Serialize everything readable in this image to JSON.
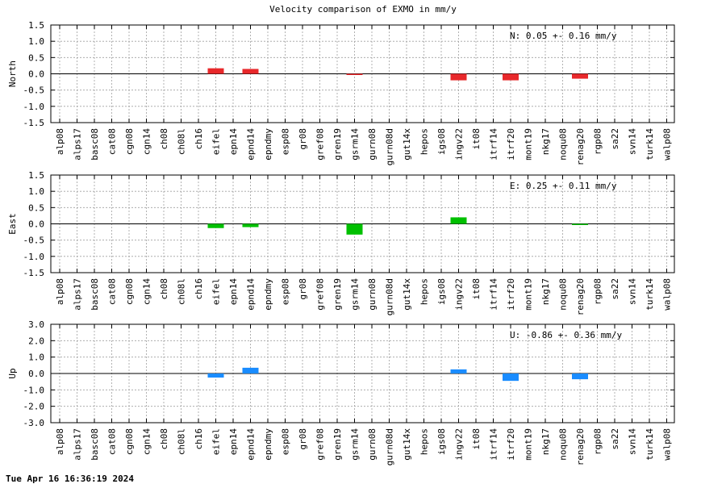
{
  "title": "Velocity comparison of EXMO in mm/y",
  "timestamp": "Tue Apr 16 16:36:19 2024",
  "chart_data": [
    {
      "type": "bar",
      "ylabel": "North",
      "ylim": [
        -1.5,
        1.5
      ],
      "yticks": [
        "1.5",
        "1.0",
        "0.5",
        "0.0",
        "-0.5",
        "-1.0",
        "-1.5"
      ],
      "ytick_values": [
        1.5,
        1.0,
        0.5,
        0.0,
        -0.5,
        -1.0,
        -1.5
      ],
      "color": "#e8282b",
      "stat": "N:   0.05 +-  0.16 mm/y",
      "categories": [
        "alp08",
        "alps17",
        "basc08",
        "cat08",
        "cgn08",
        "cgn14",
        "ch08",
        "ch08l",
        "ch16",
        "eifel",
        "epn14",
        "epnd14",
        "epndmy",
        "esp08",
        "gr08",
        "gref08",
        "gren19",
        "gsrm14",
        "gurn08",
        "gurn08d",
        "gut14x",
        "hepos",
        "igs08",
        "ingv22",
        "it08",
        "itrf14",
        "itrf20",
        "mont19",
        "nkg17",
        "noqu08",
        "renag20",
        "rgp08",
        "sa22",
        "svn14",
        "turk14",
        "walp08"
      ],
      "values": [
        null,
        null,
        null,
        null,
        null,
        null,
        null,
        null,
        null,
        0.17,
        null,
        0.15,
        null,
        null,
        null,
        null,
        null,
        -0.03,
        null,
        null,
        null,
        null,
        null,
        -0.2,
        null,
        null,
        -0.2,
        null,
        null,
        null,
        -0.15,
        null,
        null,
        null,
        null,
        null
      ],
      "grid": true
    },
    {
      "type": "bar",
      "ylabel": "East",
      "ylim": [
        -1.5,
        1.5
      ],
      "yticks": [
        "1.5",
        "1.0",
        "0.5",
        "0.0",
        "-0.5",
        "-1.0",
        "-1.5"
      ],
      "ytick_values": [
        1.5,
        1.0,
        0.5,
        0.0,
        -0.5,
        -1.0,
        -1.5
      ],
      "color": "#00c000",
      "stat": "E:   0.25 +-  0.11 mm/y",
      "categories": [
        "alp08",
        "alps17",
        "basc08",
        "cat08",
        "cgn08",
        "cgn14",
        "ch08",
        "ch08l",
        "ch16",
        "eifel",
        "epn14",
        "epnd14",
        "epndmy",
        "esp08",
        "gr08",
        "gref08",
        "gren19",
        "gsrm14",
        "gurn08",
        "gurn08d",
        "gut14x",
        "hepos",
        "igs08",
        "ingv22",
        "it08",
        "itrf14",
        "itrf20",
        "mont19",
        "nkg17",
        "noqu08",
        "renag20",
        "rgp08",
        "sa22",
        "svn14",
        "turk14",
        "walp08"
      ],
      "values": [
        null,
        null,
        null,
        null,
        null,
        null,
        null,
        null,
        null,
        -0.13,
        null,
        -0.1,
        null,
        null,
        null,
        null,
        null,
        -0.33,
        null,
        null,
        null,
        null,
        null,
        0.2,
        null,
        null,
        null,
        null,
        null,
        null,
        -0.03,
        null,
        null,
        null,
        null,
        null
      ],
      "grid": true
    },
    {
      "type": "bar",
      "ylabel": "Up",
      "ylim": [
        -3.0,
        3.0
      ],
      "yticks": [
        "3.0",
        "2.0",
        "1.0",
        "0.0",
        "-1.0",
        "-2.0",
        "-3.0"
      ],
      "ytick_values": [
        3.0,
        2.0,
        1.0,
        0.0,
        -1.0,
        -2.0,
        -3.0
      ],
      "color": "#1a8cff",
      "stat": "U:  -0.86 +-  0.36 mm/y",
      "categories": [
        "alp08",
        "alps17",
        "basc08",
        "cat08",
        "cgn08",
        "cgn14",
        "ch08",
        "ch08l",
        "ch16",
        "eifel",
        "epn14",
        "epnd14",
        "epndmy",
        "esp08",
        "gr08",
        "gref08",
        "gren19",
        "gsrm14",
        "gurn08",
        "gurn08d",
        "gut14x",
        "hepos",
        "igs08",
        "ingv22",
        "it08",
        "itrf14",
        "itrf20",
        "mont19",
        "nkg17",
        "noqu08",
        "renag20",
        "rgp08",
        "sa22",
        "svn14",
        "turk14",
        "walp08"
      ],
      "values": [
        null,
        null,
        null,
        null,
        null,
        null,
        null,
        null,
        null,
        -0.25,
        null,
        0.35,
        null,
        null,
        null,
        null,
        null,
        null,
        null,
        null,
        null,
        null,
        null,
        0.25,
        null,
        null,
        -0.45,
        null,
        null,
        null,
        -0.35,
        null,
        null,
        null,
        null,
        null
      ],
      "grid": true
    }
  ]
}
